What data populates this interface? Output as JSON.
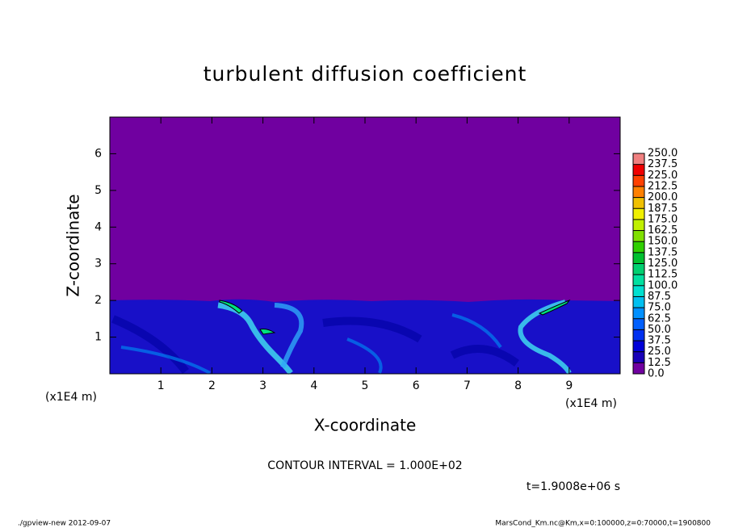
{
  "chart_data": {
    "type": "contour",
    "title": "turbulent diffusion coefficient",
    "x_label": "X-coordinate",
    "y_label": "Z-coordinate",
    "x_unit": "(x1E4 m)",
    "x_unit_right": "(x1E4 m)",
    "xlim": [
      0,
      10
    ],
    "ylim": [
      0,
      7
    ],
    "xticks": [
      1,
      2,
      3,
      4,
      5,
      6,
      7,
      8,
      9
    ],
    "yticks": [
      1,
      2,
      3,
      4,
      5,
      6
    ],
    "colorbar": {
      "levels": [
        {
          "value": 0,
          "label": "0.0"
        },
        {
          "value": 12.5,
          "label": "12.5"
        },
        {
          "value": 25,
          "label": "25.0"
        },
        {
          "value": 37.5,
          "label": "37.5"
        },
        {
          "value": 50,
          "label": "50.0"
        },
        {
          "value": 62.5,
          "label": "62.5"
        },
        {
          "value": 75,
          "label": "75.0"
        },
        {
          "value": 87.5,
          "label": "87.5"
        },
        {
          "value": 100,
          "label": "100.0"
        },
        {
          "value": 112.5,
          "label": "112.5"
        },
        {
          "value": 125,
          "label": "125.0"
        },
        {
          "value": 137.5,
          "label": "137.5"
        },
        {
          "value": 150,
          "label": "150.0"
        },
        {
          "value": 162.5,
          "label": "162.5"
        },
        {
          "value": 175,
          "label": "175.0"
        },
        {
          "value": 187.5,
          "label": "187.5"
        },
        {
          "value": 200,
          "label": "200.0"
        },
        {
          "value": 212.5,
          "label": "212.5"
        },
        {
          "value": 225,
          "label": "225.0"
        },
        {
          "value": 237.5,
          "label": "237.5"
        },
        {
          "value": 250,
          "label": "250.0"
        }
      ],
      "colors": [
        "#7000a0",
        "#1800b8",
        "#0000d8",
        "#0030f0",
        "#0060ff",
        "#0090ff",
        "#00c0f0",
        "#00e0d0",
        "#00e0a0",
        "#00d070",
        "#00c030",
        "#30d000",
        "#80e000",
        "#c0f000",
        "#f0f000",
        "#f0c000",
        "#ff8000",
        "#ff4000",
        "#f00000",
        "#f08080"
      ]
    },
    "contour_interval": "CONTOUR INTERVAL = 1.000E+02",
    "time": "t=1.9008e+06 s",
    "footer_left": "./gpview-new   2012-09-07",
    "footer_right": "MarsCond_Km.nc@Km,x=0:100000,z=0:70000,t=1900800"
  }
}
